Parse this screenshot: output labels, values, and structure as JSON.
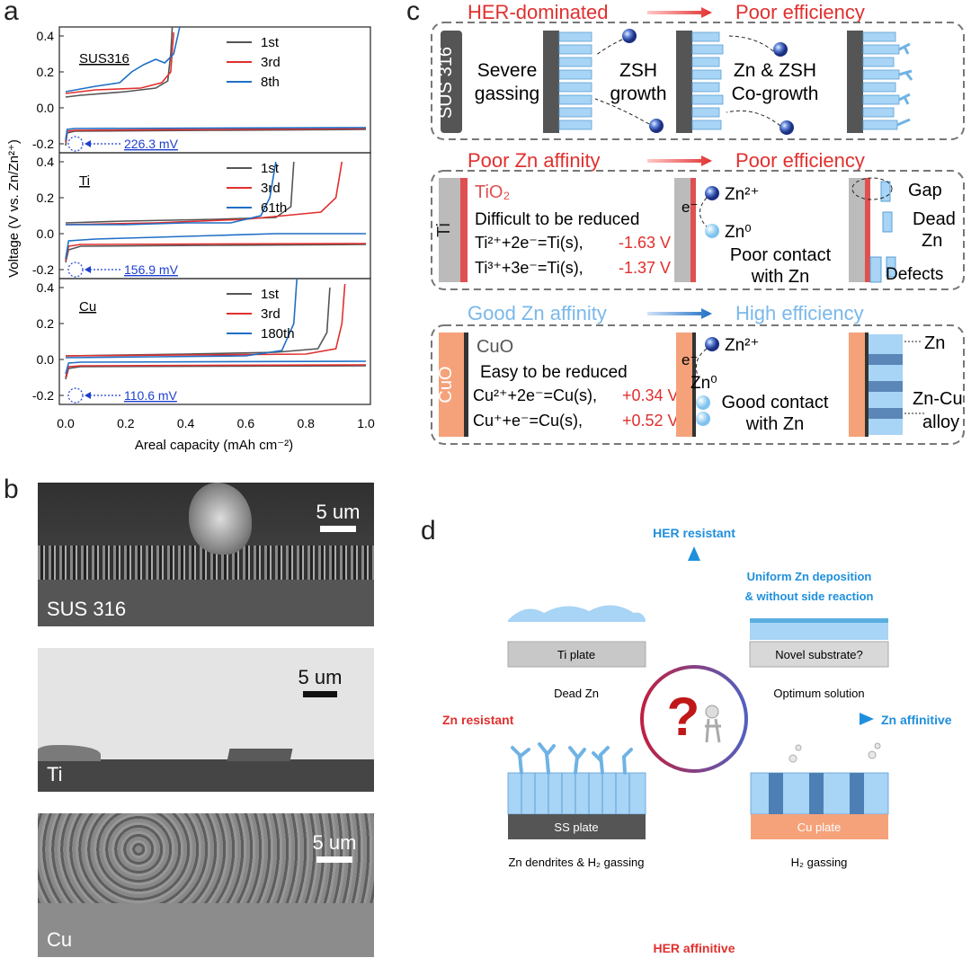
{
  "panel_labels": {
    "a": "a",
    "b": "b",
    "c": "c",
    "d": "d"
  },
  "panel_a": {
    "ylabel": "Voltage (V vs. Zn/Zn²⁺)",
    "xlabel": "Areal capacity (mAh cm⁻²)",
    "x_ticks": [
      "0.0",
      "0.2",
      "0.4",
      "0.6",
      "0.8",
      "1.0"
    ],
    "subplots": [
      {
        "label": "SUS316",
        "annotation": "226.3 mV",
        "y_ticks": [
          "0.4",
          "0.2",
          "0.0",
          "-0.2"
        ],
        "legend": [
          "1st",
          "3rd",
          "8th"
        ]
      },
      {
        "label": "Ti",
        "annotation": "156.9 mV",
        "y_ticks": [
          "0.4",
          "0.2",
          "0.0",
          "-0.2"
        ],
        "legend": [
          "1st",
          "3rd",
          "61th"
        ]
      },
      {
        "label": "Cu",
        "annotation": "110.6 mV",
        "y_ticks": [
          "0.4",
          "0.2",
          "0.0",
          "-0.2"
        ],
        "legend": [
          "1st",
          "3rd",
          "180th"
        ]
      }
    ]
  },
  "chart_data": [
    {
      "type": "line",
      "xlabel": "Areal capacity (mAh cm⁻²)",
      "ylabel": "Voltage (V vs. Zn/Zn²⁺)",
      "title": "",
      "xlim": [
        0,
        1.0
      ],
      "ylim": [
        -0.25,
        0.45
      ],
      "annotation": "226.3 mV",
      "series": [
        {
          "name": "1st",
          "color": "#555555",
          "charge": [
            [
              0.0,
              -0.21
            ],
            [
              0.005,
              -0.14
            ],
            [
              0.03,
              -0.13
            ],
            [
              0.5,
              -0.125
            ],
            [
              1.0,
              -0.12
            ]
          ],
          "discharge": [
            [
              0.0,
              0.06
            ],
            [
              0.05,
              0.07
            ],
            [
              0.2,
              0.09
            ],
            [
              0.3,
              0.11
            ],
            [
              0.34,
              0.15
            ],
            [
              0.35,
              0.3
            ],
            [
              0.355,
              0.45
            ]
          ]
        },
        {
          "name": "3rd",
          "color": "#e0302e",
          "charge": [
            [
              0.0,
              -0.19
            ],
            [
              0.005,
              -0.13
            ],
            [
              0.03,
              -0.125
            ],
            [
              1.0,
              -0.115
            ]
          ],
          "discharge": [
            [
              0.0,
              0.08
            ],
            [
              0.1,
              0.1
            ],
            [
              0.25,
              0.11
            ],
            [
              0.32,
              0.14
            ],
            [
              0.35,
              0.2
            ],
            [
              0.36,
              0.42
            ]
          ]
        },
        {
          "name": "8th",
          "color": "#1f6fc6",
          "charge": [
            [
              0.0,
              -0.18
            ],
            [
              0.005,
              -0.12
            ],
            [
              0.03,
              -0.115
            ],
            [
              1.0,
              -0.11
            ]
          ],
          "discharge": [
            [
              0.0,
              0.09
            ],
            [
              0.1,
              0.12
            ],
            [
              0.18,
              0.14
            ],
            [
              0.22,
              0.2
            ],
            [
              0.26,
              0.24
            ],
            [
              0.3,
              0.27
            ],
            [
              0.33,
              0.25
            ],
            [
              0.36,
              0.3
            ],
            [
              0.38,
              0.45
            ]
          ]
        }
      ]
    },
    {
      "type": "line",
      "xlabel": "Areal capacity (mAh cm⁻²)",
      "ylabel": "Voltage (V vs. Zn/Zn²⁺)",
      "title": "",
      "xlim": [
        0,
        1.0
      ],
      "ylim": [
        -0.25,
        0.45
      ],
      "annotation": "156.9 mV",
      "series": [
        {
          "name": "1st",
          "color": "#555555",
          "charge": [
            [
              0.0,
              -0.16
            ],
            [
              0.01,
              -0.09
            ],
            [
              0.05,
              -0.07
            ],
            [
              0.5,
              -0.065
            ],
            [
              1.0,
              -0.06
            ]
          ],
          "discharge": [
            [
              0.0,
              0.06
            ],
            [
              0.2,
              0.07
            ],
            [
              0.5,
              0.08
            ],
            [
              0.7,
              0.09
            ],
            [
              0.75,
              0.15
            ],
            [
              0.76,
              0.4
            ]
          ]
        },
        {
          "name": "3rd",
          "color": "#e0302e",
          "charge": [
            [
              0.0,
              -0.15
            ],
            [
              0.01,
              -0.07
            ],
            [
              0.05,
              -0.06
            ],
            [
              1.0,
              -0.055
            ]
          ],
          "discharge": [
            [
              0.0,
              0.05
            ],
            [
              0.3,
              0.06
            ],
            [
              0.6,
              0.08
            ],
            [
              0.85,
              0.12
            ],
            [
              0.9,
              0.2
            ],
            [
              0.92,
              0.4
            ]
          ]
        },
        {
          "name": "61th",
          "color": "#1f6fc6",
          "charge": [
            [
              0.0,
              -0.14
            ],
            [
              0.01,
              -0.04
            ],
            [
              0.1,
              -0.03
            ],
            [
              0.3,
              -0.02
            ],
            [
              0.5,
              -0.01
            ],
            [
              0.7,
              0.0
            ],
            [
              1.0,
              0.0
            ]
          ],
          "discharge": [
            [
              0.0,
              0.05
            ],
            [
              0.2,
              0.05
            ],
            [
              0.4,
              0.06
            ],
            [
              0.55,
              0.06
            ],
            [
              0.65,
              0.1
            ],
            [
              0.68,
              0.2
            ],
            [
              0.7,
              0.4
            ]
          ]
        }
      ]
    },
    {
      "type": "line",
      "xlabel": "Areal capacity (mAh cm⁻²)",
      "ylabel": "Voltage (V vs. Zn/Zn²⁺)",
      "title": "",
      "xlim": [
        0,
        1.0
      ],
      "ylim": [
        -0.25,
        0.45
      ],
      "annotation": "110.6 mV",
      "series": [
        {
          "name": "1st",
          "color": "#555555",
          "charge": [
            [
              0.0,
              -0.11
            ],
            [
              0.01,
              -0.05
            ],
            [
              0.05,
              -0.04
            ],
            [
              1.0,
              -0.035
            ]
          ],
          "discharge": [
            [
              0.0,
              0.02
            ],
            [
              0.4,
              0.03
            ],
            [
              0.7,
              0.04
            ],
            [
              0.84,
              0.06
            ],
            [
              0.87,
              0.15
            ],
            [
              0.88,
              0.4
            ]
          ]
        },
        {
          "name": "3rd",
          "color": "#e0302e",
          "charge": [
            [
              0.0,
              -0.1
            ],
            [
              0.01,
              -0.04
            ],
            [
              0.05,
              -0.035
            ],
            [
              1.0,
              -0.03
            ]
          ],
          "discharge": [
            [
              0.0,
              0.02
            ],
            [
              0.4,
              0.025
            ],
            [
              0.8,
              0.03
            ],
            [
              0.9,
              0.06
            ],
            [
              0.92,
              0.2
            ],
            [
              0.93,
              0.42
            ]
          ]
        },
        {
          "name": "180th",
          "color": "#1f6fc6",
          "charge": [
            [
              0.0,
              -0.08
            ],
            [
              0.01,
              -0.02
            ],
            [
              0.05,
              -0.015
            ],
            [
              1.0,
              -0.01
            ]
          ],
          "discharge": [
            [
              0.0,
              0.01
            ],
            [
              0.3,
              0.015
            ],
            [
              0.6,
              0.02
            ],
            [
              0.72,
              0.05
            ],
            [
              0.76,
              0.2
            ],
            [
              0.77,
              0.45
            ]
          ]
        }
      ]
    }
  ],
  "panel_b": {
    "images": [
      {
        "label": "SUS 316",
        "scale": "5 um"
      },
      {
        "label": "Ti",
        "scale": "5 um"
      },
      {
        "label": "Cu",
        "scale": "5 um"
      }
    ]
  },
  "panel_c": {
    "row1": {
      "left": "HER-dominated",
      "right": "Poor efficiency",
      "side": "SUS 316",
      "t1": "Severe",
      "t2": "gassing",
      "t3": "ZSH",
      "t4": "growth",
      "t5": "Zn & ZSH",
      "t6": "Co-growth"
    },
    "row2": {
      "left": "Poor Zn affinity",
      "right": "Poor efficiency",
      "side": "Ti",
      "oxide": "TiO₂",
      "line1": "Difficult to be reduced",
      "eq1": "Ti²⁺+2e⁻=Ti(s),",
      "eq1v": "-1.63 V",
      "eq2": "Ti³⁺+3e⁻=Ti(s),",
      "eq2v": "-1.37 V",
      "ion": "Zn²⁺",
      "atom": "Zn⁰",
      "electron": "e⁻",
      "contact1": "Poor contact",
      "contact2": "with Zn",
      "gap": "Gap",
      "dead1": "Dead",
      "dead2": "Zn",
      "defects": "Defects"
    },
    "row3": {
      "left": "Good Zn affinity",
      "right": "High efficiency",
      "side": "CuO",
      "oxide": "CuO",
      "line1": "Easy to be reduced",
      "eq1": "Cu²⁺+2e⁻=Cu(s),",
      "eq1v": "+0.34 V",
      "eq2": "Cu⁺+e⁻=Cu(s),",
      "eq2v": "+0.52 V",
      "ion": "Zn²⁺",
      "atom": "Zn⁰",
      "electron": "e⁻",
      "contact1": "Good contact",
      "contact2": "with Zn",
      "zn": "Zn",
      "alloy1": "Zn-Cu",
      "alloy2": "alloy"
    }
  },
  "panel_d": {
    "top": "HER resistant",
    "bottom": "HER affinitive",
    "left": "Zn resistant",
    "right": "Zn affinitive",
    "tr_title1": "Uniform Zn deposition",
    "tr_title2": "& without side reaction",
    "tl_plate": "Ti plate",
    "tl_caption": "Dead Zn",
    "tr_plate": "Novel substrate?",
    "tr_caption": "Optimum solution",
    "bl_plate": "SS plate",
    "bl_caption": "Zn dendrites & H₂ gassing",
    "br_plate": "Cu plate",
    "br_caption": "H₂ gassing"
  }
}
